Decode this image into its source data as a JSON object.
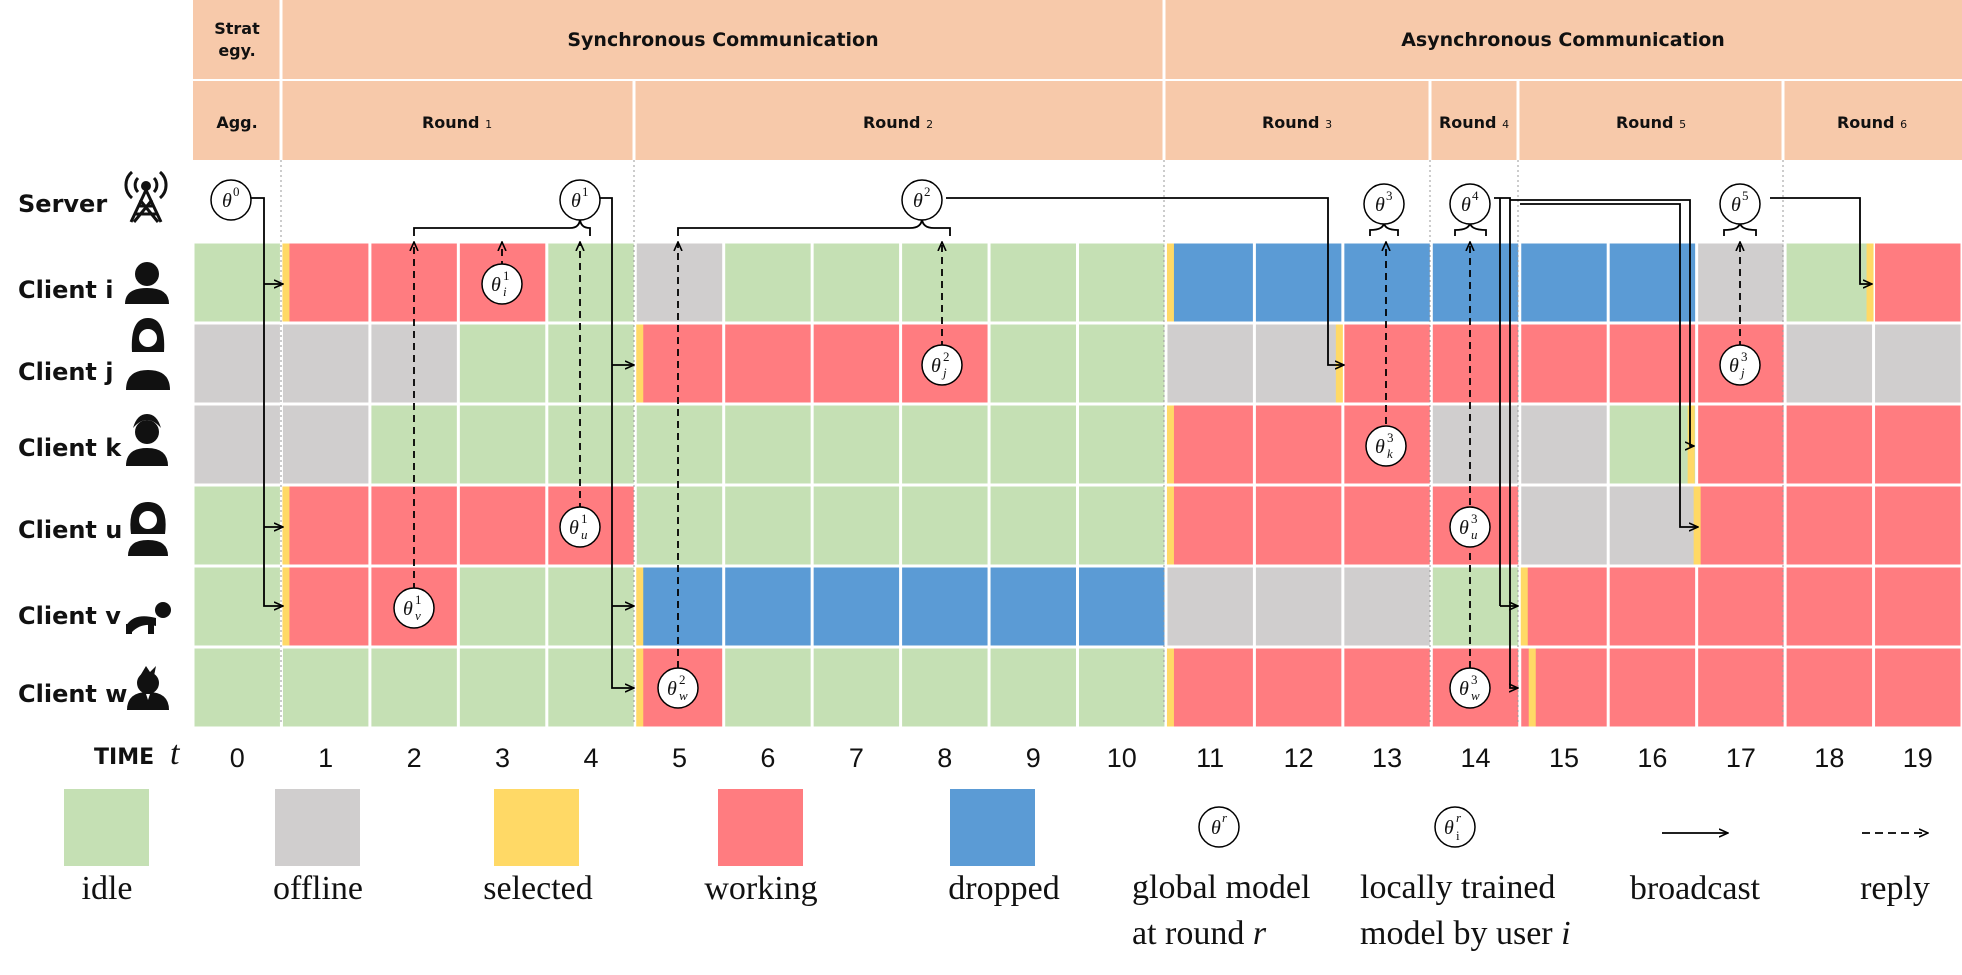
{
  "header": {
    "strategy_label_1": "Strat",
    "strategy_label_2": "egy.",
    "agg_label": "Agg.",
    "sync_label": "Synchronous Communication",
    "async_label": "Asynchronous Communication",
    "rounds": [
      {
        "name": "Round",
        "num": "1"
      },
      {
        "name": "Round",
        "num": "2"
      },
      {
        "name": "Round",
        "num": "3"
      },
      {
        "name": "Round",
        "num": "4"
      },
      {
        "name": "Round",
        "num": "5"
      },
      {
        "name": "Round",
        "num": "6"
      }
    ]
  },
  "rows": [
    {
      "label": "Server",
      "icon": "antenna-tower-icon"
    },
    {
      "label": "Client i",
      "icon": "person-icon"
    },
    {
      "label": "Client j",
      "icon": "woman-icon"
    },
    {
      "label": "Client k",
      "icon": "man-icon"
    },
    {
      "label": "Client u",
      "icon": "long-hair-woman-icon"
    },
    {
      "label": "Client v",
      "icon": "crawling-baby-icon"
    },
    {
      "label": "Client w",
      "icon": "businessman-icon"
    }
  ],
  "time_axis": {
    "label": "TIME",
    "var": "t",
    "ticks": [
      "0",
      "1",
      "2",
      "3",
      "4",
      "5",
      "6",
      "7",
      "8",
      "9",
      "10",
      "11",
      "12",
      "13",
      "14",
      "15",
      "16",
      "17",
      "18",
      "19"
    ]
  },
  "colors": {
    "header": "#f7c9aa",
    "idle": "#c5e0b4",
    "offline": "#d0cece",
    "selected": "#ffd966",
    "working": "#ff7c80",
    "dropped": "#5b9bd5"
  },
  "states": {
    "Client i": [
      "idle",
      "working",
      "working",
      "working",
      "idle",
      "offline",
      "idle",
      "idle",
      "idle",
      "idle",
      "idle",
      "dropped",
      "dropped",
      "dropped",
      "dropped",
      "dropped",
      "dropped",
      "offline",
      "idle",
      "working"
    ],
    "Client j": [
      "offline",
      "offline",
      "offline",
      "idle",
      "idle",
      "working",
      "working",
      "working",
      "working",
      "idle",
      "idle",
      "offline",
      "offline",
      "working",
      "working",
      "working",
      "working",
      "working",
      "offline",
      "offline"
    ],
    "Client k": [
      "offline",
      "offline",
      "idle",
      "idle",
      "idle",
      "idle",
      "idle",
      "idle",
      "idle",
      "idle",
      "idle",
      "working",
      "working",
      "working",
      "offline",
      "offline",
      "idle",
      "working",
      "working",
      "working"
    ],
    "Client u": [
      "idle",
      "working",
      "working",
      "working",
      "working",
      "idle",
      "idle",
      "idle",
      "idle",
      "idle",
      "idle",
      "working",
      "working",
      "working",
      "working",
      "offline",
      "offline",
      "working",
      "working",
      "working"
    ],
    "Client v": [
      "idle",
      "working",
      "working",
      "idle",
      "idle",
      "dropped",
      "dropped",
      "dropped",
      "dropped",
      "dropped",
      "dropped",
      "offline",
      "offline",
      "offline",
      "idle",
      "working",
      "working",
      "working",
      "working",
      "working"
    ],
    "Client w": [
      "idle",
      "idle",
      "idle",
      "idle",
      "idle",
      "working",
      "idle",
      "idle",
      "idle",
      "idle",
      "idle",
      "working",
      "working",
      "working",
      "working",
      "working",
      "working",
      "working",
      "working",
      "working"
    ]
  },
  "global_models": [
    {
      "id": "theta0",
      "base": "θ",
      "sup": "0"
    },
    {
      "id": "theta1",
      "base": "θ",
      "sup": "1"
    },
    {
      "id": "theta2",
      "base": "θ",
      "sup": "2"
    },
    {
      "id": "theta3",
      "base": "θ",
      "sup": "3"
    },
    {
      "id": "theta4",
      "base": "θ",
      "sup": "4"
    },
    {
      "id": "theta5",
      "base": "θ",
      "sup": "5"
    }
  ],
  "local_models": [
    {
      "id": "ti1",
      "base": "θ",
      "sub": "i",
      "sup": "1"
    },
    {
      "id": "tu1",
      "base": "θ",
      "sub": "u",
      "sup": "1"
    },
    {
      "id": "tv1",
      "base": "θ",
      "sub": "v",
      "sup": "1"
    },
    {
      "id": "tj2",
      "base": "θ",
      "sub": "j",
      "sup": "2"
    },
    {
      "id": "tw2",
      "base": "θ",
      "sub": "w",
      "sup": "2"
    },
    {
      "id": "tk3",
      "base": "θ",
      "sub": "k",
      "sup": "3"
    },
    {
      "id": "tu3",
      "base": "θ",
      "sub": "u",
      "sup": "3"
    },
    {
      "id": "tw3",
      "base": "θ",
      "sub": "w",
      "sup": "3"
    },
    {
      "id": "tj3",
      "base": "θ",
      "sub": "j",
      "sup": "3"
    }
  ],
  "legend": {
    "idle": "idle",
    "offline": "offline",
    "selected": "selected",
    "working": "working",
    "dropped": "dropped",
    "global_symbol": {
      "base": "θ",
      "sup": "r"
    },
    "global_line1": "global model",
    "global_line2a": "at round ",
    "global_line2b": "r",
    "local_symbol": {
      "base": "θ",
      "sub": "i",
      "sup": "r"
    },
    "local_line1": "locally trained",
    "local_line2a": "model by user ",
    "local_line2b": "i",
    "broadcast": "broadcast",
    "reply": "reply"
  }
}
